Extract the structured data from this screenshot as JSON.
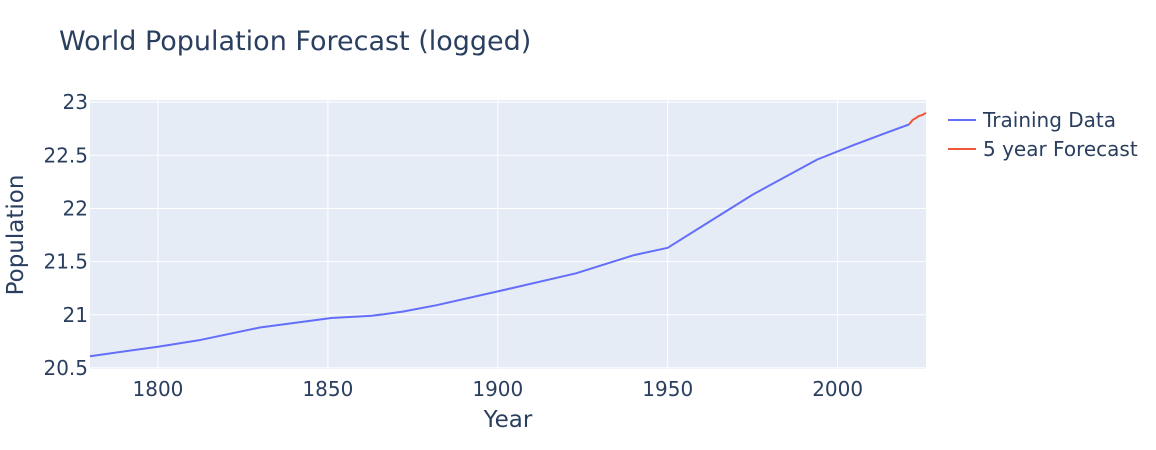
{
  "chart_data": {
    "type": "line",
    "title": "World Population Forecast (logged)",
    "xlabel": "Year",
    "ylabel": "Population",
    "xlim": [
      1780,
      2026
    ],
    "ylim": [
      20.49,
      23.02
    ],
    "x_ticks": [
      1800,
      1850,
      1900,
      1950,
      2000
    ],
    "y_ticks": [
      20.5,
      21,
      21.5,
      22,
      22.5,
      23
    ],
    "y_tick_labels": [
      "20.5",
      "21",
      "21.5",
      "22",
      "22.5",
      "23"
    ],
    "grid": true,
    "legend_position": "top-right",
    "series": [
      {
        "name": "Training Data",
        "color": "#636efa",
        "x": [
          1780,
          1800,
          1812,
          1830,
          1851,
          1863,
          1872,
          1882,
          1900,
          1923,
          1940,
          1950,
          1961,
          1975,
          1994,
          2005,
          2015,
          2021
        ],
        "y": [
          20.61,
          20.7,
          20.76,
          20.88,
          20.97,
          20.99,
          21.03,
          21.09,
          21.22,
          21.39,
          21.56,
          21.63,
          21.85,
          22.13,
          22.46,
          22.6,
          22.72,
          22.79
        ]
      },
      {
        "name": "5 year Forecast",
        "color": "#ef553b",
        "x": [
          2021,
          2022,
          2023,
          2024,
          2025,
          2026
        ],
        "y": [
          22.79,
          22.83,
          22.85,
          22.87,
          22.88,
          22.9
        ]
      }
    ]
  }
}
